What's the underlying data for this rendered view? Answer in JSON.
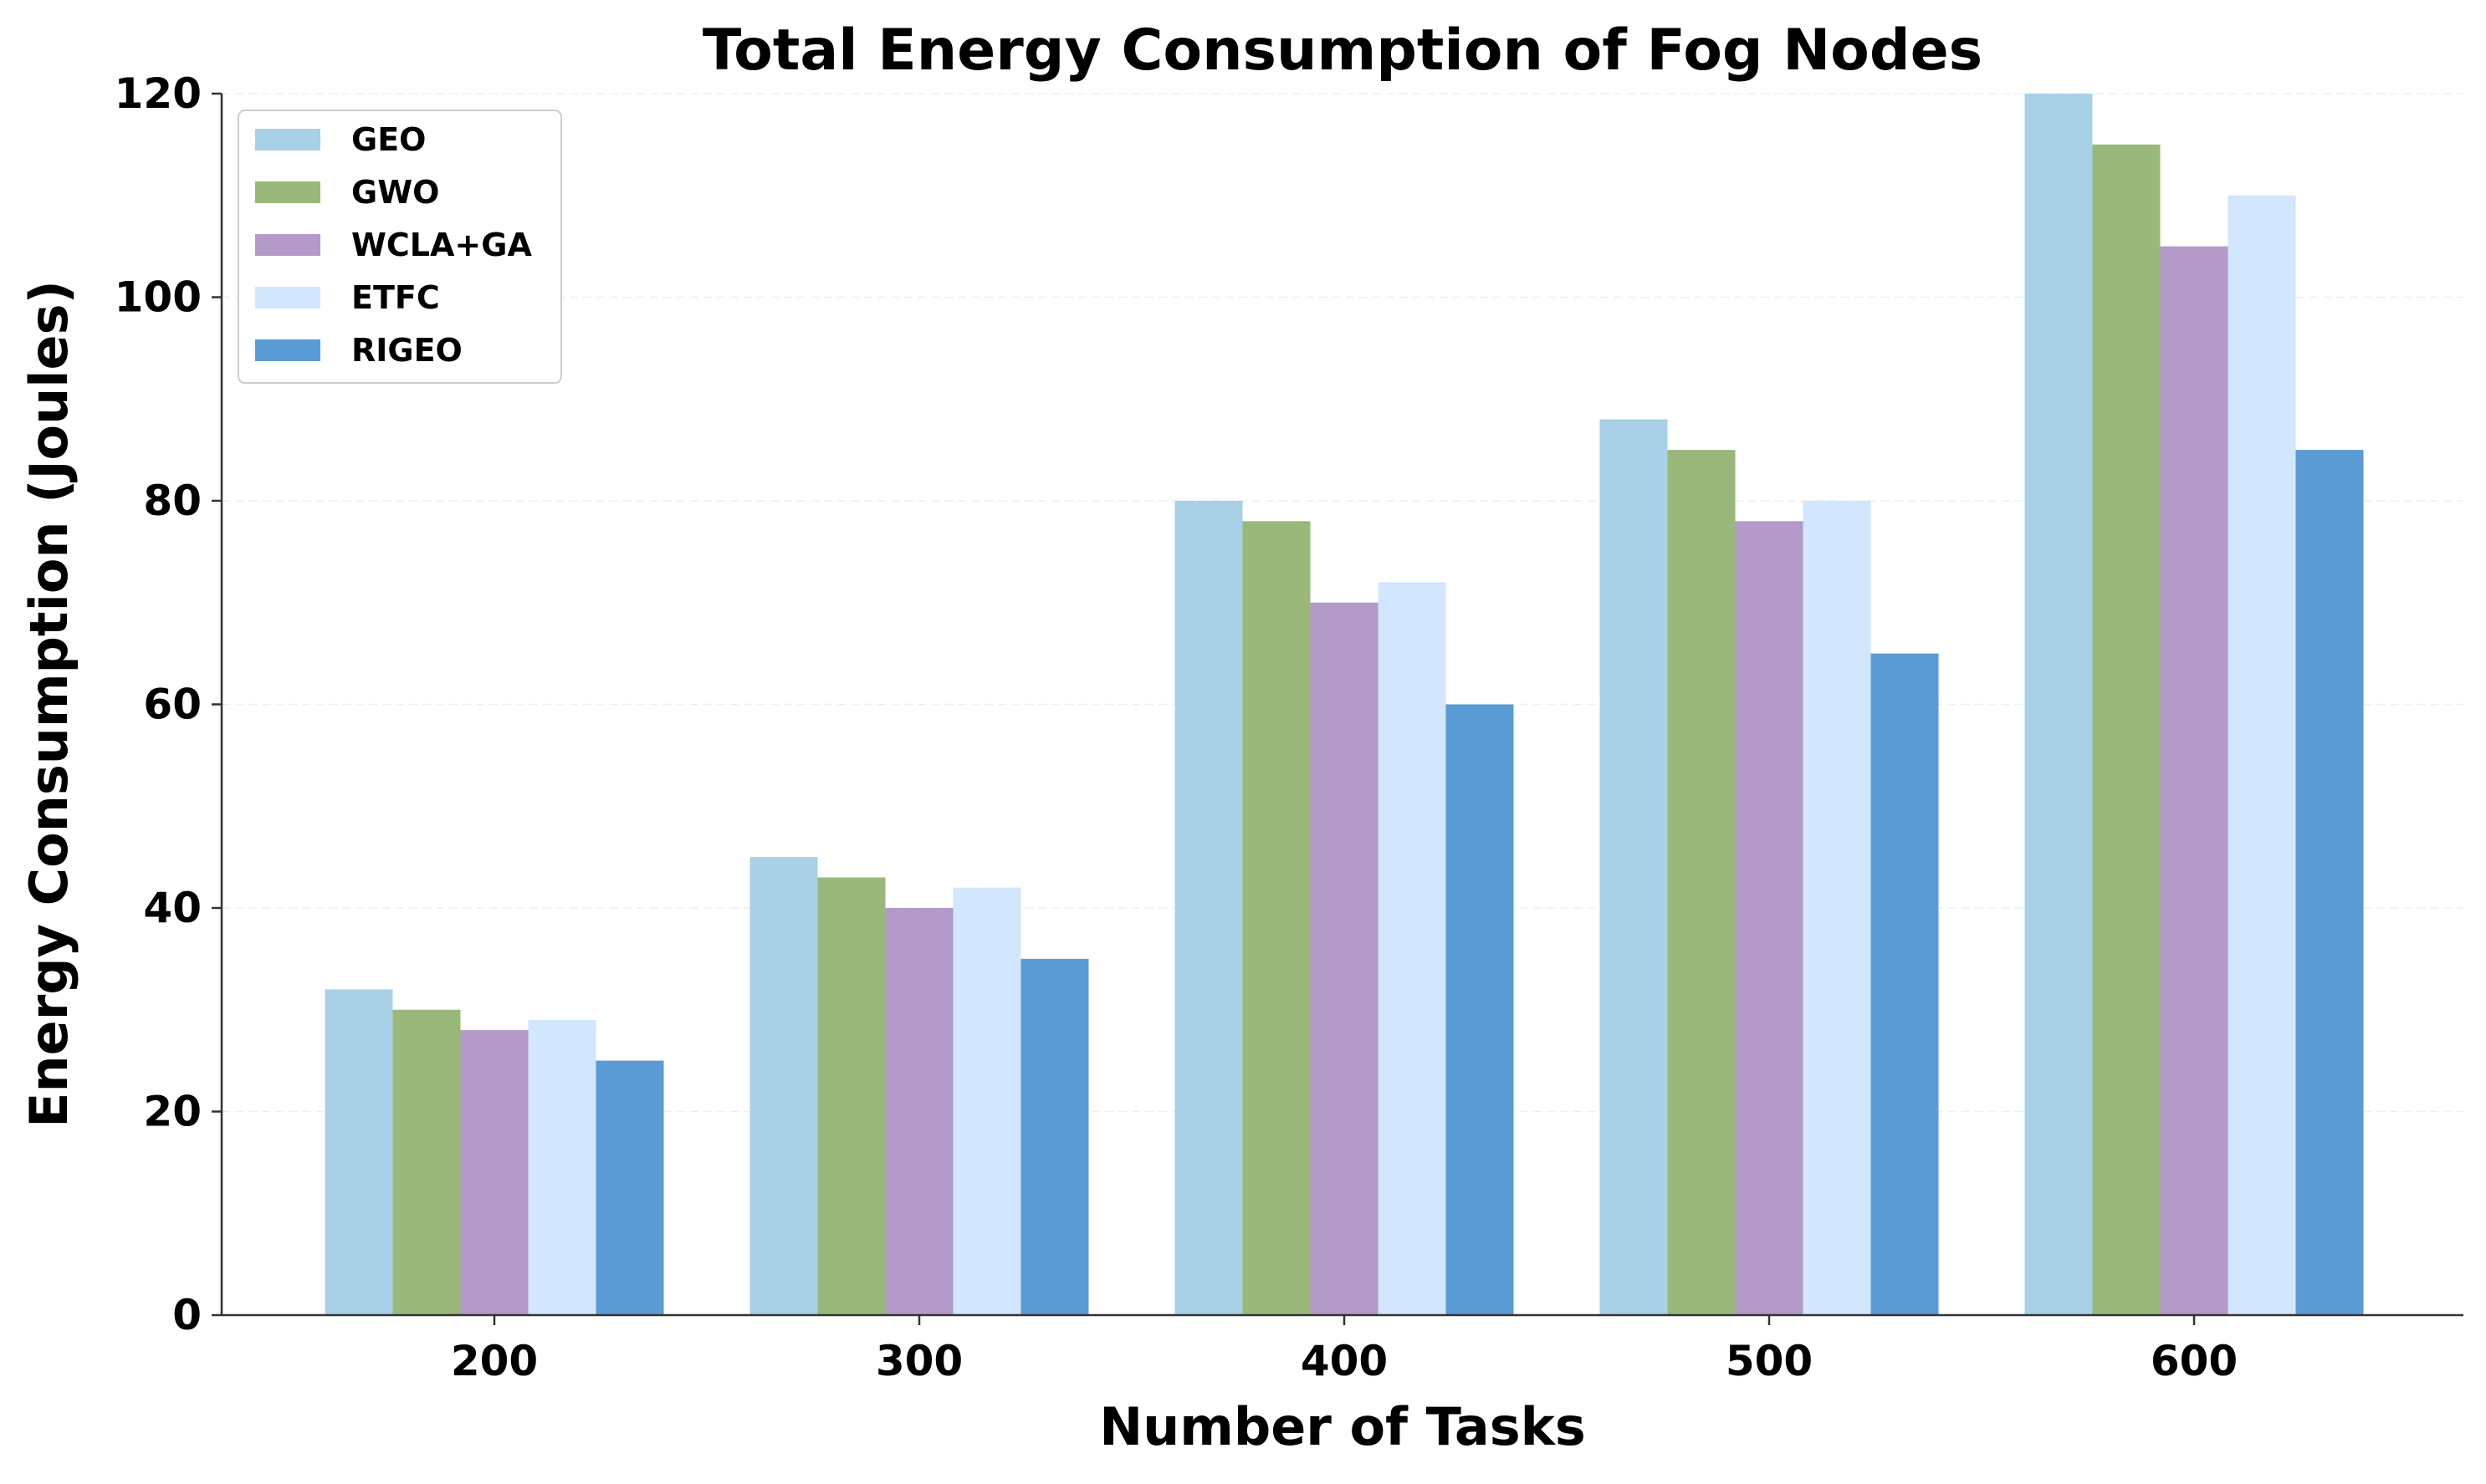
{
  "chart_data": {
    "type": "bar",
    "title": "Total Energy Consumption of Fog Nodes",
    "xlabel": "Number of Tasks",
    "ylabel": "Energy Consumption (Joules)",
    "categories": [
      "200",
      "300",
      "400",
      "500",
      "600"
    ],
    "ylim": [
      0,
      120
    ],
    "yticks": [
      0,
      20,
      40,
      60,
      80,
      100,
      120
    ],
    "grid": "horizontal",
    "legend_position": "top-left",
    "series": [
      {
        "name": "GEO",
        "color": "#a8d0e6",
        "values": [
          32,
          45,
          80,
          88,
          120
        ]
      },
      {
        "name": "GWO",
        "color": "#99b879",
        "values": [
          30,
          43,
          78,
          85,
          115
        ]
      },
      {
        "name": "WCLA+GA",
        "color": "#b39ac8",
        "values": [
          28,
          40,
          70,
          78,
          105
        ]
      },
      {
        "name": "ETFC",
        "color": "#d2e6fd",
        "values": [
          29,
          42,
          72,
          80,
          110
        ]
      },
      {
        "name": "RIGEO",
        "color": "#5b9bd5",
        "values": [
          25,
          35,
          60,
          65,
          85
        ]
      }
    ]
  }
}
